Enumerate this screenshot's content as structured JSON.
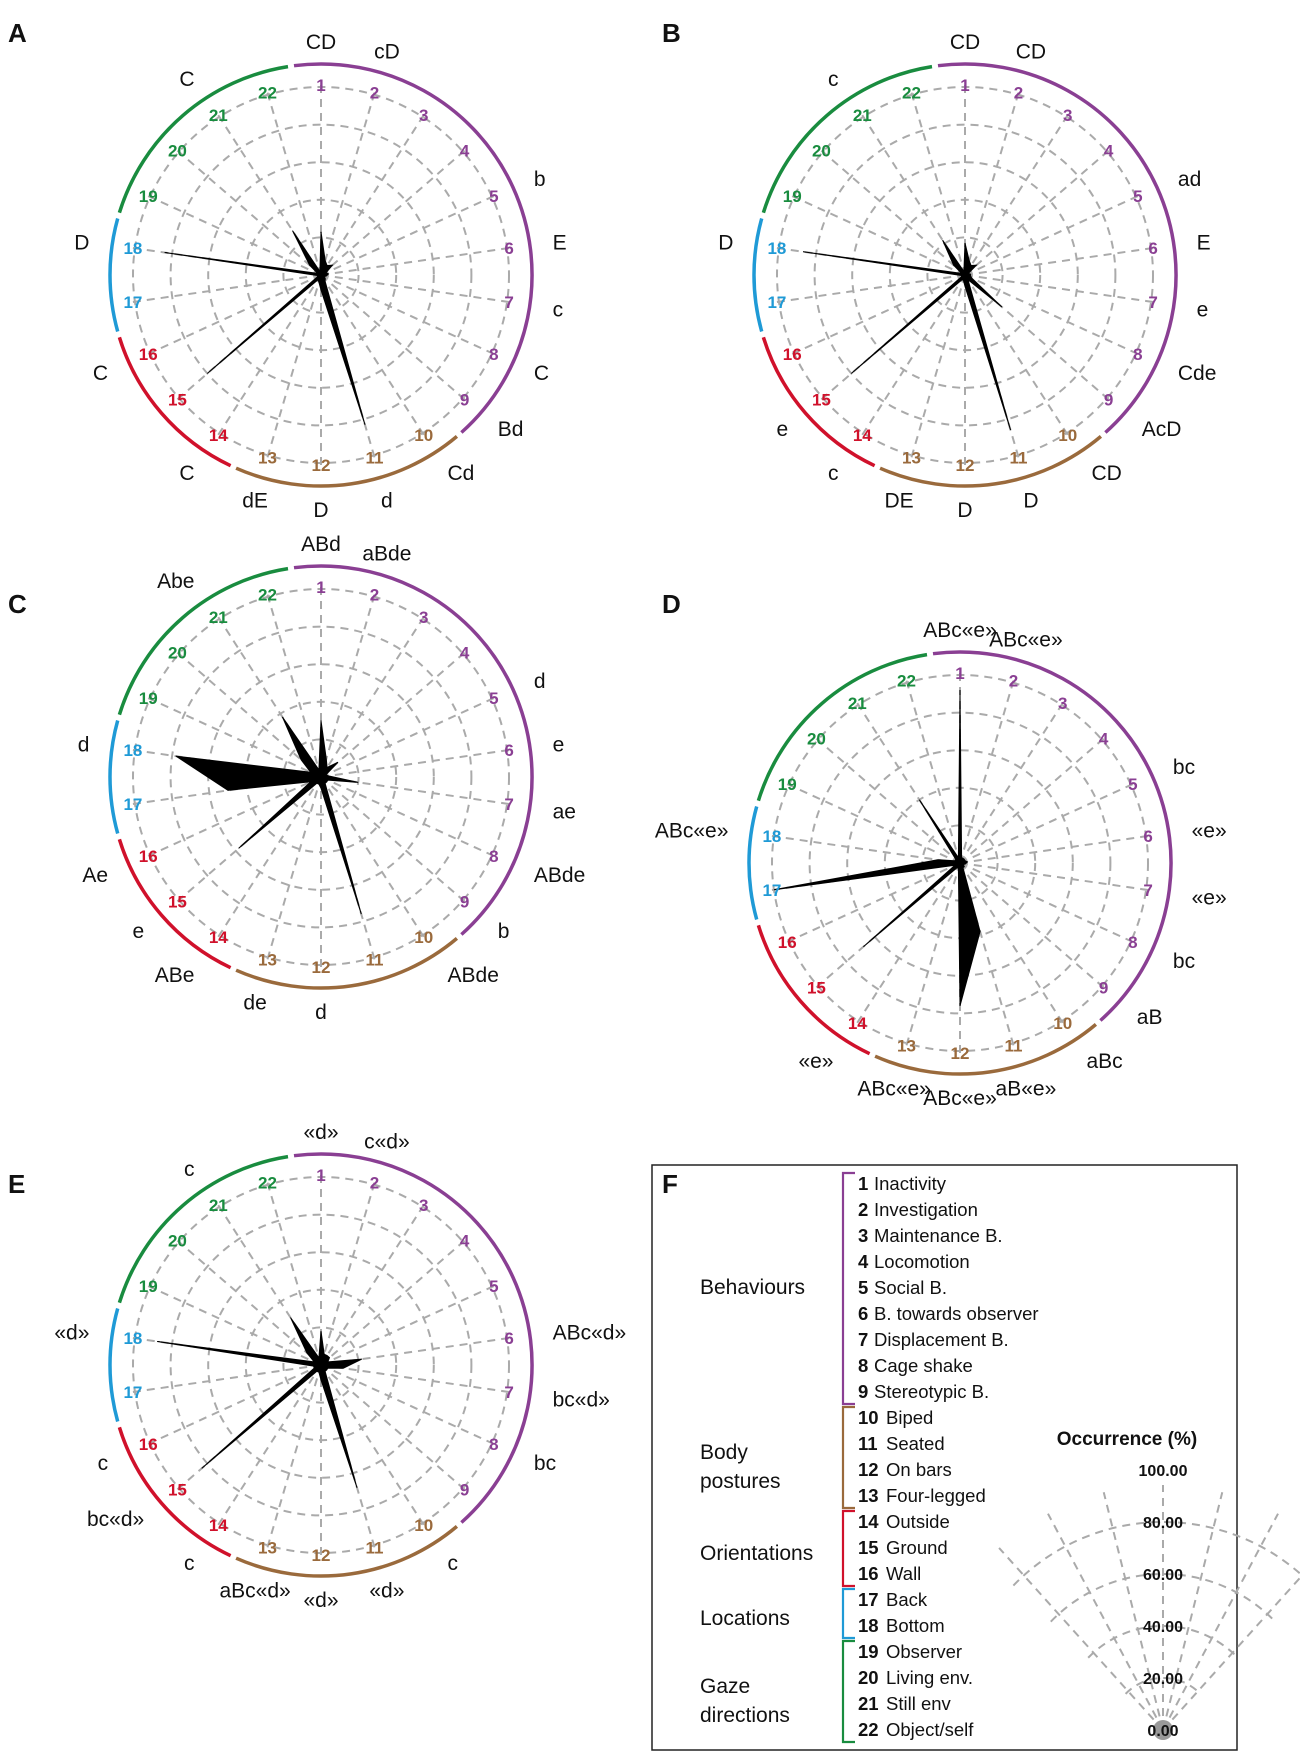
{
  "colors": {
    "purple": "#8a3f93",
    "brown": "#9a6a3c",
    "red": "#d0112b",
    "blue": "#1f9ad6",
    "green": "#198c3f",
    "grid": "#aaaaaa",
    "shape": "#000000"
  },
  "items": [
    {
      "n": "1",
      "label": "Inactivity",
      "group": "purple"
    },
    {
      "n": "2",
      "label": "Investigation",
      "group": "purple"
    },
    {
      "n": "3",
      "label": "Maintenance B.",
      "group": "purple"
    },
    {
      "n": "4",
      "label": "Locomotion",
      "group": "purple"
    },
    {
      "n": "5",
      "label": "Social B.",
      "group": "purple"
    },
    {
      "n": "6",
      "label": "B. towards observer",
      "group": "purple"
    },
    {
      "n": "7",
      "label": "Displacement B.",
      "group": "purple"
    },
    {
      "n": "8",
      "label": "Cage shake",
      "group": "purple"
    },
    {
      "n": "9",
      "label": "Stereotypic B.",
      "group": "purple"
    },
    {
      "n": "10",
      "label": "Biped",
      "group": "brown"
    },
    {
      "n": "11",
      "label": "Seated",
      "group": "brown"
    },
    {
      "n": "12",
      "label": "On bars",
      "group": "brown"
    },
    {
      "n": "13",
      "label": "Four-legged",
      "group": "brown"
    },
    {
      "n": "14",
      "label": "Outside",
      "group": "red"
    },
    {
      "n": "15",
      "label": "Ground",
      "group": "red"
    },
    {
      "n": "16",
      "label": "Wall",
      "group": "red"
    },
    {
      "n": "17",
      "label": "Back",
      "group": "blue"
    },
    {
      "n": "18",
      "label": "Bottom",
      "group": "blue"
    },
    {
      "n": "19",
      "label": "Observer",
      "group": "green"
    },
    {
      "n": "20",
      "label": "Living env.",
      "group": "green"
    },
    {
      "n": "21",
      "label": "Still env",
      "group": "green"
    },
    {
      "n": "22",
      "label": "Object/self",
      "group": "green"
    }
  ],
  "legend": {
    "panel_letter": "F",
    "categories": [
      "Behaviours",
      "Body postures",
      "Orientations",
      "Locations",
      "Gaze directions"
    ],
    "scale_title": "Occurrence (%)",
    "scale_values": [
      "100.00",
      "80.00",
      "60.00",
      "40.00",
      "20.00",
      "0.00"
    ]
  },
  "chart_data": [
    {
      "type": "radar",
      "panel": "A",
      "axes": [
        "1",
        "2",
        "3",
        "4",
        "5",
        "6",
        "7",
        "8",
        "9",
        "10",
        "11",
        "12",
        "13",
        "14",
        "15",
        "16",
        "17",
        "18",
        "19",
        "20",
        "21",
        "22"
      ],
      "rlim": [
        0,
        100
      ],
      "gridlines": [
        20,
        40,
        60,
        80,
        100
      ],
      "values": [
        23,
        8,
        6,
        8,
        3,
        4,
        3,
        2,
        3,
        4,
        83,
        8,
        4,
        3,
        80,
        2,
        2,
        84,
        2,
        8,
        28,
        2
      ],
      "significance": [
        "CD",
        "cD",
        "",
        "",
        "b",
        "E",
        "c",
        "C",
        "Bd",
        "Cd",
        "d",
        "D",
        "dE",
        "C",
        "",
        "C",
        "",
        "D",
        "",
        "",
        "C",
        ""
      ]
    },
    {
      "type": "radar",
      "panel": "B",
      "axes": [
        "1",
        "2",
        "3",
        "4",
        "5",
        "6",
        "7",
        "8",
        "9",
        "10",
        "11",
        "12",
        "13",
        "14",
        "15",
        "16",
        "17",
        "18",
        "19",
        "20",
        "21",
        "22"
      ],
      "rlim": [
        0,
        100
      ],
      "gridlines": [
        20,
        40,
        60,
        80,
        100
      ],
      "values": [
        17,
        8,
        6,
        8,
        2,
        3,
        3,
        4,
        26,
        3,
        86,
        6,
        3,
        3,
        80,
        2,
        2,
        87,
        2,
        8,
        22,
        2
      ],
      "significance": [
        "CD",
        "CD",
        "",
        "",
        "ad",
        "E",
        "e",
        "Cde",
        "AcD",
        "CD",
        "D",
        "D",
        "DE",
        "c",
        "e",
        "",
        "",
        "D",
        "",
        "",
        "c",
        ""
      ]
    },
    {
      "type": "radar",
      "panel": "C",
      "axes": [
        "1",
        "2",
        "3",
        "4",
        "5",
        "6",
        "7",
        "8",
        "9",
        "10",
        "11",
        "12",
        "13",
        "14",
        "15",
        "16",
        "17",
        "18",
        "19",
        "20",
        "21",
        "22"
      ],
      "rlim": [
        0,
        100
      ],
      "gridlines": [
        20,
        40,
        60,
        80,
        100
      ],
      "values": [
        30,
        10,
        6,
        12,
        3,
        4,
        20,
        4,
        4,
        4,
        76,
        6,
        4,
        4,
        58,
        6,
        50,
        78,
        6,
        14,
        38,
        4
      ],
      "significance": [
        "ABd",
        "aBde",
        "",
        "",
        "d",
        "e",
        "ae",
        "ABde",
        "b",
        "ABde",
        "",
        "d",
        "de",
        "ABe",
        "e",
        "Ae",
        "",
        "d",
        "",
        "",
        "Abe",
        ""
      ]
    },
    {
      "type": "radar",
      "panel": "D",
      "axes": [
        "1",
        "2",
        "3",
        "4",
        "5",
        "6",
        "7",
        "8",
        "9",
        "10",
        "11",
        "12",
        "13",
        "14",
        "15",
        "16",
        "17",
        "18",
        "19",
        "20",
        "21",
        "22"
      ],
      "rlim": [
        0,
        100
      ],
      "gridlines": [
        20,
        40,
        60,
        80,
        100
      ],
      "values": [
        92,
        3,
        3,
        3,
        3,
        4,
        3,
        2,
        3,
        3,
        38,
        76,
        3,
        3,
        68,
        3,
        100,
        12,
        3,
        3,
        40,
        3
      ],
      "significance": [
        "ABc«e»",
        "ABc«e»",
        "",
        "",
        "bc",
        "«e»",
        "«e»",
        "bc",
        "aB",
        "aBc",
        "aB«e»",
        "ABc«e»",
        "ABc«e»",
        "«e»",
        "",
        "",
        "",
        "ABc«e»",
        "",
        "",
        "",
        ""
      ]
    },
    {
      "type": "radar",
      "panel": "E",
      "axes": [
        "1",
        "2",
        "3",
        "4",
        "5",
        "6",
        "7",
        "8",
        "9",
        "10",
        "11",
        "12",
        "13",
        "14",
        "15",
        "16",
        "17",
        "18",
        "19",
        "20",
        "21",
        "22"
      ],
      "rlim": [
        0,
        100
      ],
      "gridlines": [
        20,
        40,
        60,
        80,
        100
      ],
      "values": [
        18,
        6,
        6,
        6,
        4,
        22,
        12,
        4,
        4,
        4,
        68,
        8,
        4,
        4,
        84,
        4,
        4,
        88,
        4,
        10,
        30,
        4
      ],
      "significance": [
        "«d»",
        "c«d»",
        "",
        "",
        "",
        "ABc«d»",
        "bc«d»",
        "bc",
        "",
        "c",
        "«d»",
        "«d»",
        "aBc«d»",
        "c",
        "bc«d»",
        "c",
        "",
        "«d»",
        "",
        "",
        "c",
        ""
      ]
    }
  ]
}
